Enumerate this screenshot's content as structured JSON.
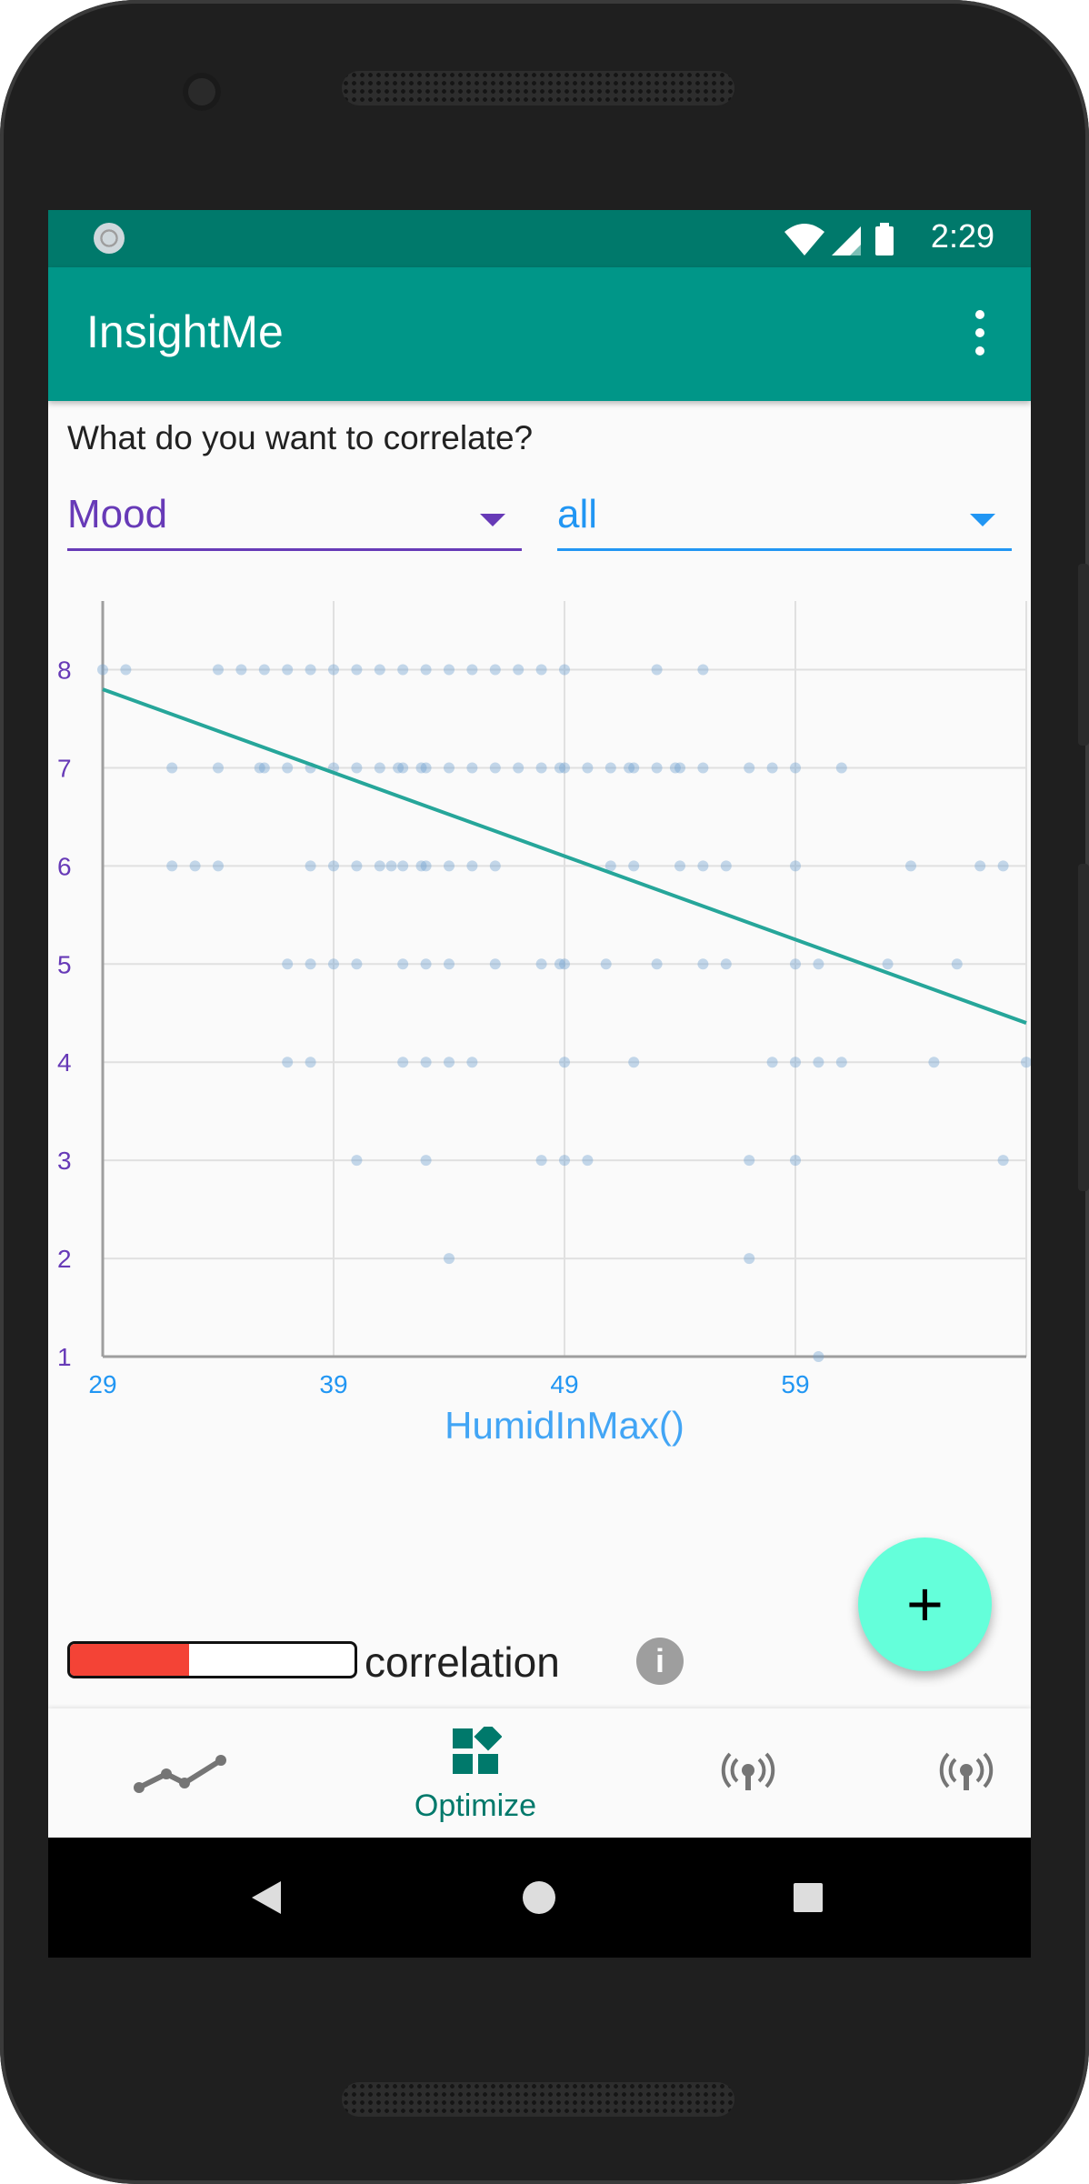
{
  "status_bar": {
    "time": "2:29"
  },
  "app_bar": {
    "title": "InsightMe"
  },
  "page": {
    "question": "What do you want to correlate?"
  },
  "dropdowns": {
    "primary_selected": "Mood",
    "secondary_selected": "all"
  },
  "colors": {
    "status_bar": "#00796b",
    "app_bar": "#009688",
    "primary_dropdown": "#673ab7",
    "secondary_dropdown": "#2196f3",
    "fab": "#64ffda",
    "correlation_bar": "#f44336",
    "regression_line": "#26a69a",
    "points": "#6f9fcf"
  },
  "chart_data": {
    "type": "scatter",
    "xlabel": "HumidInMax()",
    "ylabel": "",
    "xlim": [
      29,
      69
    ],
    "ylim": [
      1,
      8.7
    ],
    "x_ticks": [
      29,
      39,
      49,
      59
    ],
    "y_ticks": [
      1,
      2,
      3,
      4,
      5,
      6,
      7,
      8
    ],
    "grid": true,
    "regression_line": {
      "start": [
        29,
        7.8
      ],
      "end": [
        69,
        4.4
      ]
    },
    "points": [
      [
        29,
        8
      ],
      [
        30,
        8
      ],
      [
        34,
        8
      ],
      [
        35,
        8
      ],
      [
        36,
        8
      ],
      [
        37,
        8
      ],
      [
        38,
        8
      ],
      [
        39,
        8
      ],
      [
        40,
        8
      ],
      [
        41,
        8
      ],
      [
        42,
        8
      ],
      [
        43,
        8
      ],
      [
        44,
        8
      ],
      [
        45,
        8
      ],
      [
        46,
        8
      ],
      [
        47,
        8
      ],
      [
        48,
        8
      ],
      [
        49,
        8
      ],
      [
        53,
        8
      ],
      [
        55,
        8
      ],
      [
        32,
        7
      ],
      [
        34,
        7
      ],
      [
        35.8,
        7
      ],
      [
        36,
        7
      ],
      [
        37,
        7
      ],
      [
        38,
        7
      ],
      [
        39,
        7
      ],
      [
        40,
        7
      ],
      [
        41,
        7
      ],
      [
        41.8,
        7
      ],
      [
        42,
        7
      ],
      [
        42.8,
        7
      ],
      [
        43,
        7
      ],
      [
        44,
        7
      ],
      [
        45,
        7
      ],
      [
        46,
        7
      ],
      [
        47,
        7
      ],
      [
        48,
        7
      ],
      [
        48.8,
        7
      ],
      [
        49,
        7
      ],
      [
        50,
        7
      ],
      [
        51,
        7
      ],
      [
        51.8,
        7
      ],
      [
        52,
        7
      ],
      [
        53,
        7
      ],
      [
        53.8,
        7
      ],
      [
        54,
        7
      ],
      [
        55,
        7
      ],
      [
        57,
        7
      ],
      [
        58,
        7
      ],
      [
        59,
        7
      ],
      [
        61,
        7
      ],
      [
        32,
        6
      ],
      [
        33,
        6
      ],
      [
        34,
        6
      ],
      [
        38,
        6
      ],
      [
        39,
        6
      ],
      [
        40,
        6
      ],
      [
        41,
        6
      ],
      [
        41.5,
        6
      ],
      [
        42,
        6
      ],
      [
        42.8,
        6
      ],
      [
        43,
        6
      ],
      [
        44,
        6
      ],
      [
        45,
        6
      ],
      [
        46,
        6
      ],
      [
        51,
        6
      ],
      [
        52,
        6
      ],
      [
        54,
        6
      ],
      [
        55,
        6
      ],
      [
        56,
        6
      ],
      [
        59,
        6
      ],
      [
        64,
        6
      ],
      [
        67,
        6
      ],
      [
        68,
        6
      ],
      [
        37,
        5
      ],
      [
        38,
        5
      ],
      [
        39,
        5
      ],
      [
        40,
        5
      ],
      [
        42,
        5
      ],
      [
        43,
        5
      ],
      [
        44,
        5
      ],
      [
        46,
        5
      ],
      [
        48,
        5
      ],
      [
        48.8,
        5
      ],
      [
        49,
        5
      ],
      [
        50.8,
        5
      ],
      [
        53,
        5
      ],
      [
        55,
        5
      ],
      [
        56,
        5
      ],
      [
        59,
        5
      ],
      [
        60,
        5
      ],
      [
        63,
        5
      ],
      [
        66,
        5
      ],
      [
        37,
        4
      ],
      [
        38,
        4
      ],
      [
        42,
        4
      ],
      [
        43,
        4
      ],
      [
        44,
        4
      ],
      [
        45,
        4
      ],
      [
        49,
        4
      ],
      [
        52,
        4
      ],
      [
        58,
        4
      ],
      [
        59,
        4
      ],
      [
        60,
        4
      ],
      [
        61,
        4
      ],
      [
        65,
        4
      ],
      [
        69,
        4
      ],
      [
        40,
        3
      ],
      [
        43,
        3
      ],
      [
        48,
        3
      ],
      [
        49,
        3
      ],
      [
        50,
        3
      ],
      [
        57,
        3
      ],
      [
        59,
        3
      ],
      [
        68,
        3
      ],
      [
        44,
        2
      ],
      [
        57,
        2
      ],
      [
        60,
        1
      ]
    ]
  },
  "correlation": {
    "label": "correlation",
    "strength_fraction": 0.42
  },
  "fab": {
    "label": "+"
  },
  "bottom_nav": {
    "items": [
      {
        "name": "trend",
        "label": ""
      },
      {
        "name": "optimize",
        "label": "Optimize"
      },
      {
        "name": "broadcast-1",
        "label": ""
      },
      {
        "name": "broadcast-2",
        "label": ""
      }
    ]
  }
}
